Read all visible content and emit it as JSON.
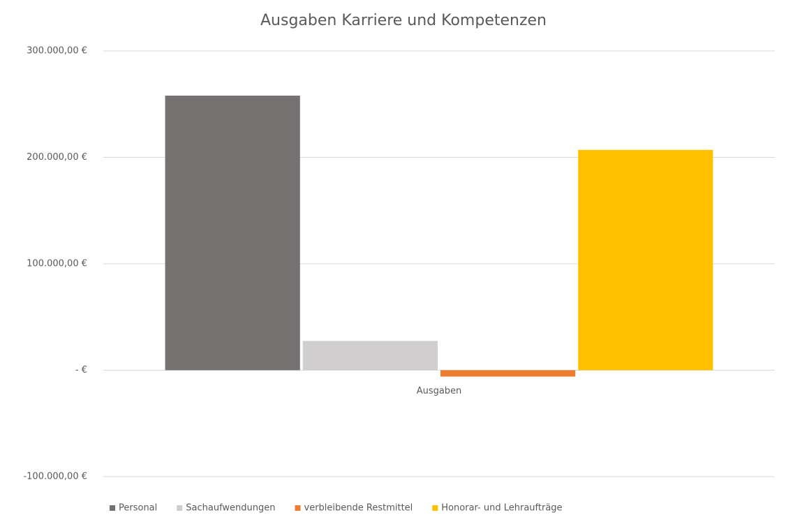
{
  "chart_data": {
    "type": "bar",
    "title": "Ausgaben Karriere und Kompetenzen",
    "categories": [
      "Ausgaben"
    ],
    "series": [
      {
        "name": "Personal",
        "color": "#767171",
        "values": [
          258000
        ]
      },
      {
        "name": "Sachaufwendungen",
        "color": "#d0cece",
        "values": [
          27500
        ]
      },
      {
        "name": "verbleibende Restmittel",
        "color": "#ed7d31",
        "values": [
          -6000
        ]
      },
      {
        "name": "Honorar- und Lehraufträge",
        "color": "#ffc000",
        "values": [
          207000
        ]
      }
    ],
    "ylim": [
      -100000,
      300000
    ],
    "yticks": [
      {
        "value": -100000,
        "label": "-100.000,00 €"
      },
      {
        "value": 0,
        "label": "-  €"
      },
      {
        "value": 100000,
        "label": "100.000,00 €"
      },
      {
        "value": 200000,
        "label": "200.000,00 €"
      },
      {
        "value": 300000,
        "label": "300.000,00 €"
      }
    ],
    "grid": true,
    "legend": "bottom"
  }
}
